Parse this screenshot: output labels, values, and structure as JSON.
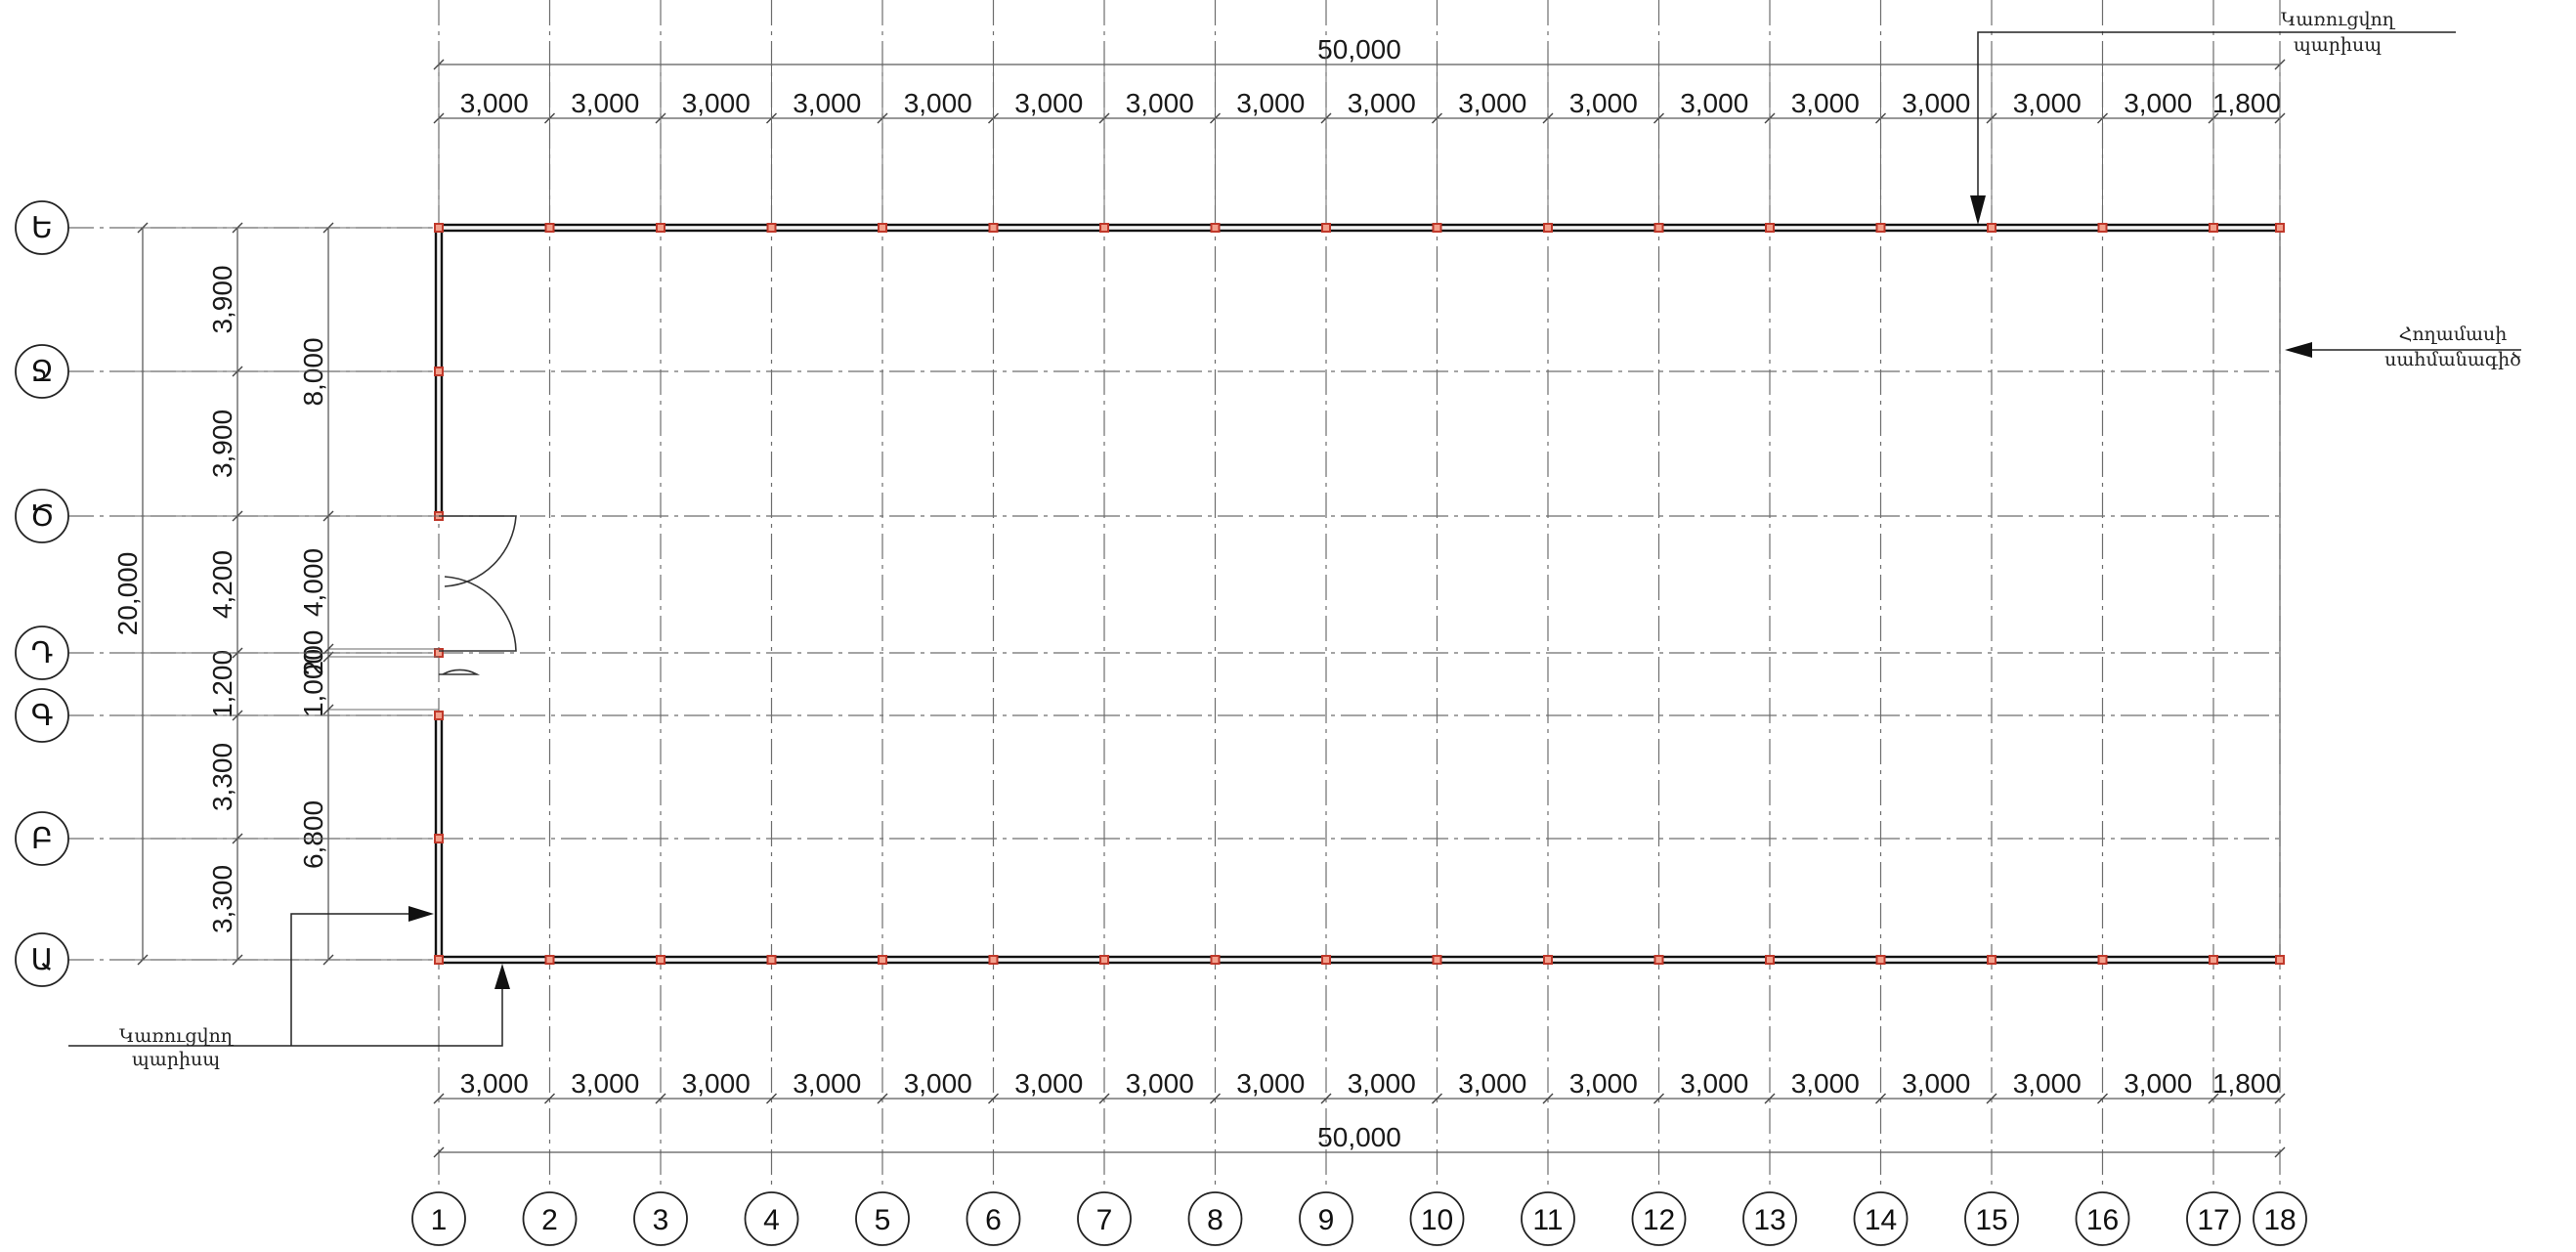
{
  "plan": {
    "column_axes": [
      "1",
      "2",
      "3",
      "4",
      "5",
      "6",
      "7",
      "8",
      "9",
      "10",
      "11",
      "12",
      "13",
      "14",
      "15",
      "16",
      "17",
      "18"
    ],
    "row_axes": [
      "Ե",
      "Ջ",
      "Ծ",
      "Դ",
      "Գ",
      "Բ",
      "Ա"
    ],
    "top_total": "50,000",
    "bottom_total": "50,000",
    "top_spacings": [
      "3,000",
      "3,000",
      "3,000",
      "3,000",
      "3,000",
      "3,000",
      "3,000",
      "3,000",
      "3,000",
      "3,000",
      "3,000",
      "3,000",
      "3,000",
      "3,000",
      "3,000",
      "3,000",
      "1,800"
    ],
    "bottom_spacings": [
      "3,000",
      "3,000",
      "3,000",
      "3,000",
      "3,000",
      "3,000",
      "3,000",
      "3,000",
      "3,000",
      "3,000",
      "3,000",
      "3,000",
      "3,000",
      "3,000",
      "3,000",
      "3,000",
      "1,800"
    ],
    "left_total": "20,000",
    "left_row_spacings": [
      "3,900",
      "3,900",
      "4,200",
      "1,200",
      "3,300",
      "3,300"
    ],
    "left_opening_dims": [
      "8,000",
      "4,000",
      "200",
      "1,000",
      "6,800"
    ]
  },
  "notes": {
    "new_fence_top": [
      "Կառուցվող",
      "պարիսպ"
    ],
    "plot_boundary": [
      "Հողամասի",
      "սահմանագիծ"
    ],
    "new_fence_bottom": [
      "Կառուցվող",
      "պարիսպ"
    ]
  }
}
